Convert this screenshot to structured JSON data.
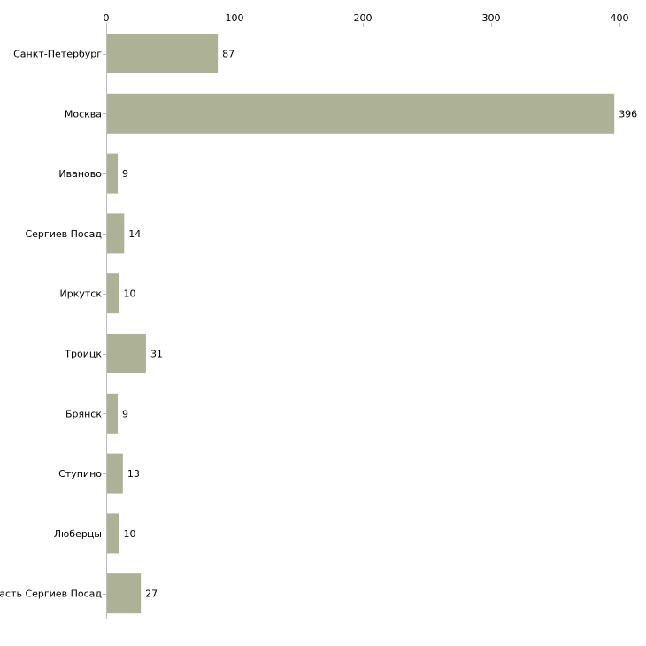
{
  "chart_data": {
    "type": "bar",
    "orientation": "horizontal",
    "title": "",
    "xlabel": "",
    "ylabel": "",
    "xlim": [
      0,
      400
    ],
    "x_ticks": [
      0,
      100,
      200,
      300,
      400
    ],
    "x_tick_labels": [
      "0",
      "100",
      "200",
      "300",
      "400"
    ],
    "categories": [
      "Санкт-Петербург",
      "Москва",
      "Иваново",
      "Сергиев Посад",
      "Иркутск",
      "Троицк",
      "Брянск",
      "Ступино",
      "Люберцы",
      "ласть Сергиев Посад"
    ],
    "values": [
      87,
      396,
      9,
      14,
      10,
      31,
      9,
      13,
      10,
      27
    ],
    "value_labels": [
      "87",
      "396",
      "9",
      "14",
      "10",
      "31",
      "9",
      "13",
      "10",
      "27"
    ],
    "bar_color": "#adb297",
    "axis_color": "#bdbdbd",
    "text_color": "#000000",
    "grid": false,
    "legend": "none"
  }
}
